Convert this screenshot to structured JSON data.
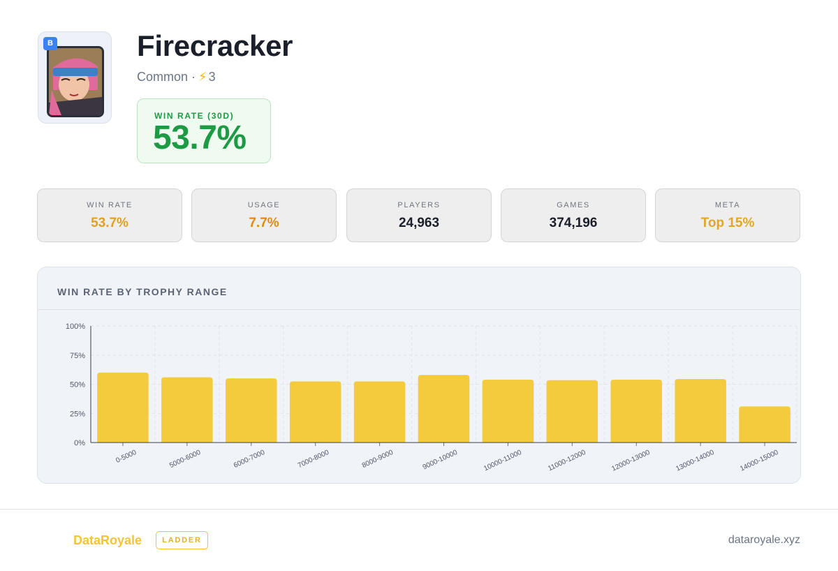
{
  "card": {
    "name": "Firecracker",
    "rarity": "Common",
    "separator": "·",
    "elixir_icon": "bolt-icon",
    "elixir": "3",
    "badge": "B",
    "badge_color": "#3b82f6"
  },
  "win_rate_box": {
    "label": "WIN RATE (30D)",
    "value": "53.7%",
    "color": "#1e9a44"
  },
  "stats": [
    {
      "label": "WIN RATE",
      "value": "53.7%",
      "color": "#e0a024"
    },
    {
      "label": "USAGE",
      "value": "7.7%",
      "color": "#de8a16"
    },
    {
      "label": "PLAYERS",
      "value": "24,963",
      "color": "#1b1f2a"
    },
    {
      "label": "GAMES",
      "value": "374,196",
      "color": "#1b1f2a"
    },
    {
      "label": "META",
      "value": "Top 15%",
      "color": "#e0a824"
    }
  ],
  "chart_title": "WIN RATE BY TROPHY RANGE",
  "chart_data": {
    "type": "bar",
    "categories": [
      "0-5000",
      "5000-6000",
      "6000-7000",
      "7000-8000",
      "8000-9000",
      "9000-10000",
      "10000-11000",
      "11000-12000",
      "12000-13000",
      "13000-14000",
      "14000-15000"
    ],
    "values": [
      60,
      56,
      55,
      52.5,
      52.5,
      58,
      54,
      53.5,
      54,
      54.5,
      31
    ],
    "yticks": [
      "0%",
      "25%",
      "50%",
      "75%",
      "100%"
    ],
    "ylim": [
      0,
      100
    ],
    "bar_color": "#f5cb3e",
    "grid": true
  },
  "footer": {
    "brand": "DataRoyale",
    "tag": "LADDER",
    "site": "dataroyale.xyz",
    "brand_color": "#f2c535"
  }
}
